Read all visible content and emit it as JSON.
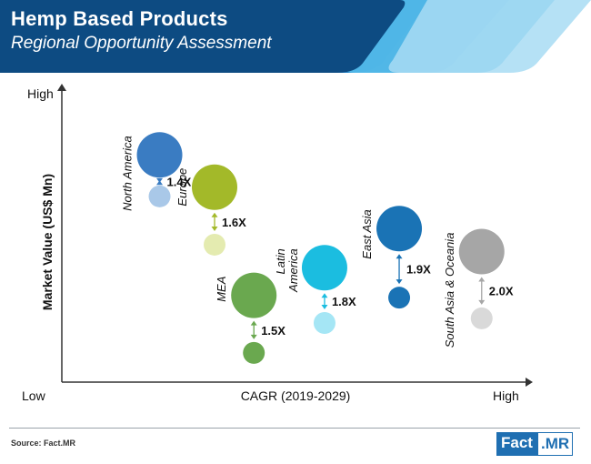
{
  "header": {
    "title": "Hemp Based Products",
    "subtitle": "Regional Opportunity Assessment"
  },
  "footer": {
    "source": "Source: Fact.MR",
    "logo_part1": "Fact",
    "logo_part2": ".MR"
  },
  "chart_data": {
    "type": "bubble-comparison",
    "title": "Hemp Based Products Regional Opportunity Assessment",
    "xlabel": "CAGR (2019-2029)",
    "ylabel": "Market Value (US$ Mn)",
    "x_low_label": "Low",
    "x_high_label": "High",
    "y_high_label": "High",
    "note": "Qualitative axes; positions are relative (0 = low, 1 = high). Small bubble = current value, large bubble = future value.",
    "series": [
      {
        "name": "North America",
        "label_lines": [
          "North America"
        ],
        "multiplier": "1.4X",
        "cagr": 0.11,
        "value_start": 0.72,
        "value_end": 0.9,
        "color_end": "#3a7cc2",
        "color_start": "#a9c8e8"
      },
      {
        "name": "Europe",
        "label_lines": [
          "Europe"
        ],
        "multiplier": "1.6X",
        "cagr": 0.25,
        "value_start": 0.51,
        "value_end": 0.76,
        "color_end": "#a3b929",
        "color_start": "#e4ebb0"
      },
      {
        "name": "MEA",
        "label_lines": [
          "MEA"
        ],
        "multiplier": "1.5X",
        "cagr": 0.35,
        "value_start": 0.04,
        "value_end": 0.29,
        "color_end": "#6aa84f",
        "color_start": "#6aa84f"
      },
      {
        "name": "Latin America",
        "label_lines": [
          "Latin",
          "America"
        ],
        "multiplier": "1.8X",
        "cagr": 0.53,
        "value_start": 0.17,
        "value_end": 0.41,
        "color_end": "#1bbde0",
        "color_start": "#a5e6f5"
      },
      {
        "name": "East Asia",
        "label_lines": [
          "East Asia"
        ],
        "multiplier": "1.9X",
        "cagr": 0.72,
        "value_start": 0.28,
        "value_end": 0.58,
        "color_end": "#1a73b5",
        "color_start": "#1a73b5"
      },
      {
        "name": "South Asia & Oceania",
        "label_lines": [
          "South Asia & Oceania"
        ],
        "multiplier": "2.0X",
        "cagr": 0.93,
        "value_start": 0.19,
        "value_end": 0.48,
        "color_end": "#a6a6a6",
        "color_start": "#d9d9d9"
      }
    ]
  },
  "colors": {
    "header_dark": "#0d4b82",
    "header_mid": "#1f82c9",
    "header_light": "#55bdea",
    "header_pale": "#a8dcf3",
    "axis": "#333333",
    "text": "#111111"
  }
}
